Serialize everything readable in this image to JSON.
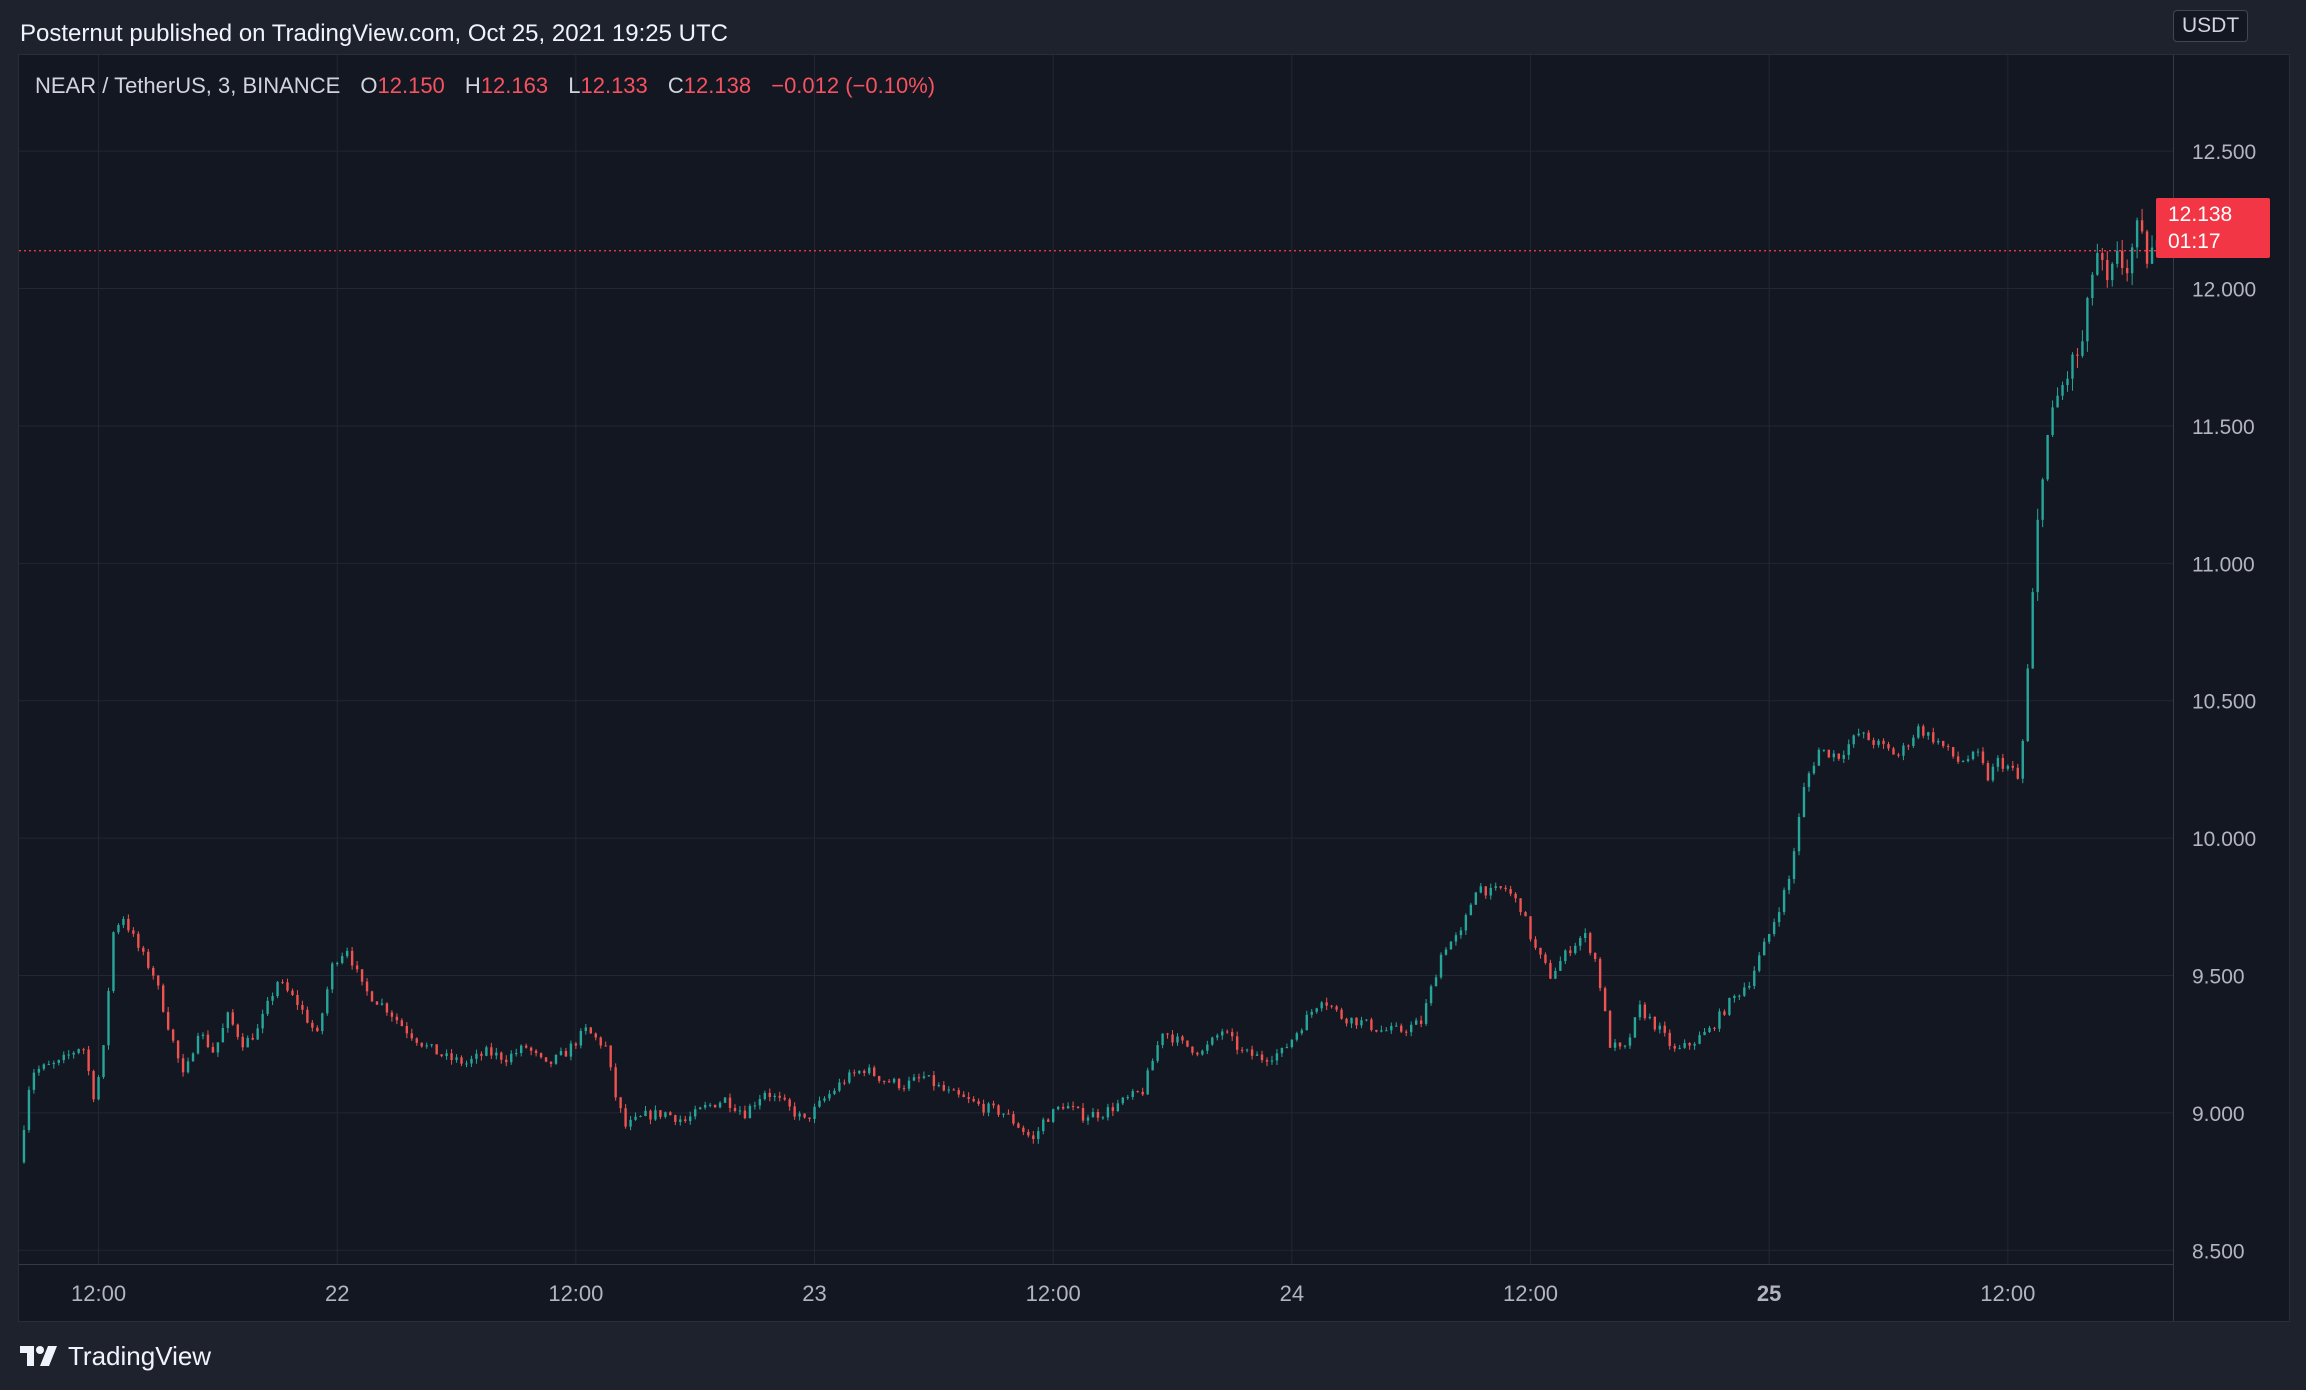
{
  "header": {
    "publish_text": "Posternut published on TradingView.com, Oct 25, 2021 19:25 UTC"
  },
  "legend": {
    "symbol": "NEAR / TetherUS, 3, BINANCE",
    "open_label": "O",
    "open": "12.150",
    "high_label": "H",
    "high": "12.163",
    "low_label": "L",
    "low": "12.133",
    "close_label": "C",
    "close": "12.138",
    "change": "−0.012 (−0.10%)"
  },
  "price_axis": {
    "currency": "USDT",
    "last_price": "12.138",
    "countdown": "01:17"
  },
  "footer": {
    "brand": "TradingView",
    "logo_icon": "tradingview-logo-icon"
  },
  "colors": {
    "background": "#131722",
    "up": "#26a69a",
    "down": "#ef5350",
    "grid": "#232733",
    "last_price": "#f23645"
  },
  "chart_data": {
    "type": "candlestick",
    "symbol": "NEAR / TetherUS",
    "interval": "3",
    "exchange": "BINANCE",
    "ylim": [
      8.45,
      12.85
    ],
    "y_ticks": [
      8.5,
      9.0,
      9.5,
      10.0,
      10.5,
      11.0,
      11.5,
      12.0,
      12.5
    ],
    "y_tick_labels": [
      "8.500",
      "9.000",
      "9.500",
      "10.000",
      "10.500",
      "11.000",
      "11.500",
      "12.000",
      "12.500"
    ],
    "x_ticks": [
      {
        "label": "12:00",
        "hours": 12
      },
      {
        "label": "22",
        "hours": 24
      },
      {
        "label": "12:00",
        "hours": 36
      },
      {
        "label": "23",
        "hours": 48
      },
      {
        "label": "12:00",
        "hours": 60
      },
      {
        "label": "24",
        "hours": 72
      },
      {
        "label": "12:00",
        "hours": 84
      },
      {
        "label": "25",
        "hours": 96,
        "bold": true
      },
      {
        "label": "12:00",
        "hours": 108
      }
    ],
    "x_range_hours": [
      8.0,
      115.5
    ],
    "grid": true,
    "last_price": 12.138,
    "price_path": [
      [
        8.0,
        8.82
      ],
      [
        8.6,
        9.15
      ],
      [
        10.0,
        9.18
      ],
      [
        11.2,
        9.25
      ],
      [
        11.8,
        9.05
      ],
      [
        12.3,
        9.25
      ],
      [
        12.7,
        9.65
      ],
      [
        13.2,
        9.72
      ],
      [
        14.0,
        9.6
      ],
      [
        14.8,
        9.5
      ],
      [
        15.5,
        9.32
      ],
      [
        16.3,
        9.12
      ],
      [
        17.0,
        9.3
      ],
      [
        17.8,
        9.22
      ],
      [
        18.5,
        9.35
      ],
      [
        19.3,
        9.25
      ],
      [
        20.0,
        9.3
      ],
      [
        21.0,
        9.48
      ],
      [
        22.0,
        9.4
      ],
      [
        23.0,
        9.28
      ],
      [
        23.8,
        9.55
      ],
      [
        24.5,
        9.6
      ],
      [
        25.3,
        9.45
      ],
      [
        26.5,
        9.38
      ],
      [
        27.5,
        9.3
      ],
      [
        28.5,
        9.24
      ],
      [
        29.5,
        9.2
      ],
      [
        30.5,
        9.18
      ],
      [
        31.5,
        9.22
      ],
      [
        32.5,
        9.2
      ],
      [
        33.5,
        9.24
      ],
      [
        34.5,
        9.17
      ],
      [
        35.5,
        9.22
      ],
      [
        36.5,
        9.3
      ],
      [
        37.5,
        9.24
      ],
      [
        38.0,
        9.06
      ],
      [
        38.5,
        8.95
      ],
      [
        39.5,
        8.99
      ],
      [
        40.5,
        9.0
      ],
      [
        41.5,
        8.97
      ],
      [
        42.5,
        9.02
      ],
      [
        43.5,
        9.05
      ],
      [
        44.5,
        9.0
      ],
      [
        45.5,
        9.08
      ],
      [
        46.5,
        9.03
      ],
      [
        47.5,
        8.97
      ],
      [
        48.5,
        9.05
      ],
      [
        49.5,
        9.12
      ],
      [
        50.5,
        9.16
      ],
      [
        51.5,
        9.12
      ],
      [
        52.5,
        9.1
      ],
      [
        53.5,
        9.13
      ],
      [
        54.5,
        9.08
      ],
      [
        55.5,
        9.05
      ],
      [
        56.5,
        9.02
      ],
      [
        57.5,
        9.0
      ],
      [
        58.3,
        8.95
      ],
      [
        59.0,
        8.9
      ],
      [
        59.5,
        8.97
      ],
      [
        60.5,
        9.03
      ],
      [
        61.5,
        8.99
      ],
      [
        62.5,
        9.0
      ],
      [
        63.5,
        9.04
      ],
      [
        64.5,
        9.08
      ],
      [
        65.5,
        9.3
      ],
      [
        66.5,
        9.25
      ],
      [
        67.5,
        9.22
      ],
      [
        68.5,
        9.3
      ],
      [
        69.5,
        9.22
      ],
      [
        70.5,
        9.2
      ],
      [
        71.5,
        9.22
      ],
      [
        72.5,
        9.32
      ],
      [
        73.5,
        9.42
      ],
      [
        74.5,
        9.35
      ],
      [
        75.5,
        9.33
      ],
      [
        76.5,
        9.3
      ],
      [
        77.5,
        9.3
      ],
      [
        78.5,
        9.33
      ],
      [
        79.0,
        9.45
      ],
      [
        79.6,
        9.6
      ],
      [
        80.5,
        9.65
      ],
      [
        81.3,
        9.83
      ],
      [
        82.0,
        9.8
      ],
      [
        82.7,
        9.82
      ],
      [
        83.5,
        9.75
      ],
      [
        84.2,
        9.6
      ],
      [
        85.0,
        9.5
      ],
      [
        86.0,
        9.6
      ],
      [
        86.7,
        9.65
      ],
      [
        87.3,
        9.55
      ],
      [
        88.0,
        9.25
      ],
      [
        88.7,
        9.22
      ],
      [
        89.5,
        9.38
      ],
      [
        90.5,
        9.3
      ],
      [
        91.3,
        9.22
      ],
      [
        92.0,
        9.25
      ],
      [
        93.0,
        9.3
      ],
      [
        94.0,
        9.4
      ],
      [
        95.0,
        9.48
      ],
      [
        96.0,
        9.65
      ],
      [
        97.0,
        9.85
      ],
      [
        97.8,
        10.2
      ],
      [
        98.5,
        10.32
      ],
      [
        99.5,
        10.3
      ],
      [
        100.5,
        10.38
      ],
      [
        101.5,
        10.34
      ],
      [
        102.5,
        10.3
      ],
      [
        103.5,
        10.4
      ],
      [
        104.5,
        10.35
      ],
      [
        105.5,
        10.28
      ],
      [
        106.5,
        10.3
      ],
      [
        107.0,
        10.22
      ],
      [
        107.5,
        10.28
      ],
      [
        108.2,
        10.25
      ],
      [
        108.6,
        10.2
      ],
      [
        108.9,
        10.5
      ],
      [
        109.4,
        11.05
      ],
      [
        109.8,
        11.4
      ],
      [
        110.5,
        11.6
      ],
      [
        111.2,
        11.72
      ],
      [
        111.8,
        11.8
      ],
      [
        112.4,
        12.15
      ],
      [
        113.0,
        12.0
      ],
      [
        113.5,
        12.1
      ],
      [
        114.0,
        12.08
      ],
      [
        114.5,
        12.2
      ],
      [
        115.0,
        12.12
      ],
      [
        115.5,
        12.138
      ]
    ]
  }
}
